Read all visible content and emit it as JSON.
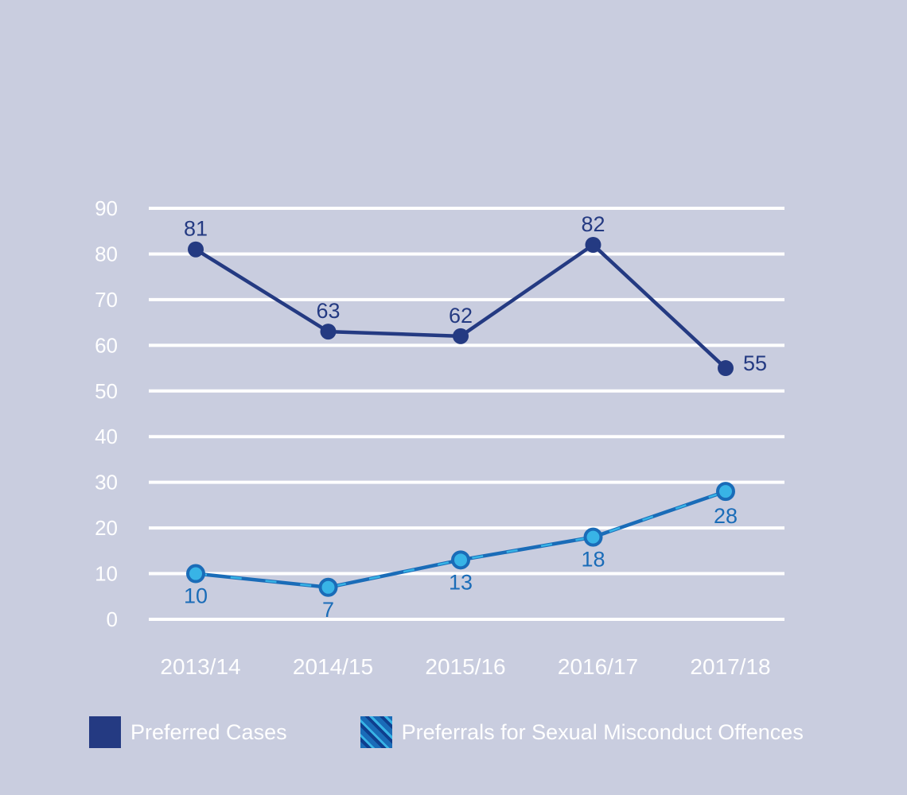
{
  "chart_data": {
    "type": "line",
    "categories": [
      "2013/14",
      "2014/15",
      "2015/16",
      "2016/17",
      "2017/18"
    ],
    "ylim": [
      0,
      90
    ],
    "yticks": [
      "0",
      "10",
      "20",
      "30",
      "40",
      "50",
      "60",
      "70",
      "80",
      "90"
    ],
    "grid": true,
    "legend_position": "bottom",
    "series": [
      {
        "name": "Preferred Cases",
        "values": [
          81,
          63,
          62,
          82,
          55
        ],
        "color": "#243a82",
        "label_position": "above"
      },
      {
        "name": "Preferrals for Sexual Misconduct Offences",
        "values": [
          10,
          7,
          13,
          18,
          28
        ],
        "color": "#1a6cb8",
        "accent_color": "#38b4e6",
        "label_position": "below"
      }
    ]
  },
  "colors": {
    "background": "#c9cddf",
    "grid": "#ffffff",
    "text": "#ffffff"
  }
}
